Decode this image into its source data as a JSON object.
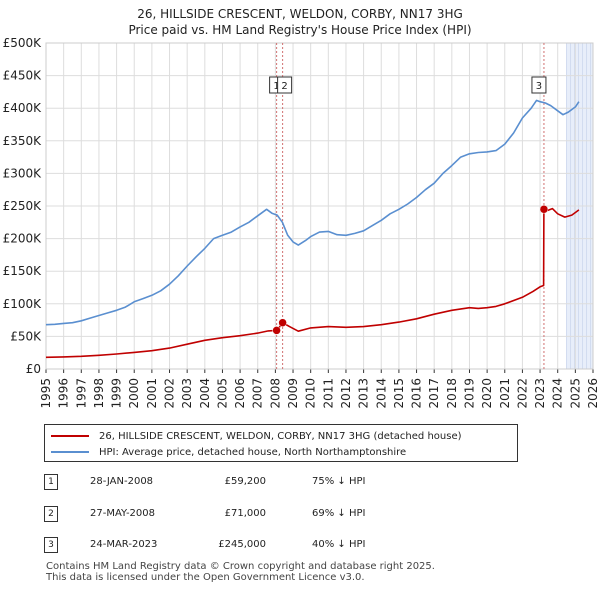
{
  "header": {
    "title": "26, HILLSIDE CRESCENT, WELDON, CORBY, NN17 3HG",
    "subtitle": "Price paid vs. HM Land Registry's House Price Index (HPI)"
  },
  "chart_data": {
    "type": "line",
    "title": "26, HILLSIDE CRESCENT, WELDON, CORBY, NN17 3HG",
    "subtitle": "Price paid vs. HM Land Registry's House Price Index (HPI)",
    "xlabel": "",
    "ylabel": "",
    "xlim": [
      1995,
      2026
    ],
    "ylim": [
      0,
      500000
    ],
    "x_ticks": [
      "1995",
      "1996",
      "1997",
      "1998",
      "1999",
      "2000",
      "2001",
      "2002",
      "2003",
      "2004",
      "2005",
      "2006",
      "2007",
      "2008",
      "2009",
      "2010",
      "2011",
      "2012",
      "2013",
      "2014",
      "2015",
      "2016",
      "2017",
      "2018",
      "2019",
      "2020",
      "2021",
      "2022",
      "2023",
      "2024",
      "2025",
      "2026"
    ],
    "y_ticks": [
      {
        "value": 0,
        "label": "£0"
      },
      {
        "value": 50000,
        "label": "£50K"
      },
      {
        "value": 100000,
        "label": "£100K"
      },
      {
        "value": 150000,
        "label": "£150K"
      },
      {
        "value": 200000,
        "label": "£200K"
      },
      {
        "value": 250000,
        "label": "£250K"
      },
      {
        "value": 300000,
        "label": "£300K"
      },
      {
        "value": 350000,
        "label": "£350K"
      },
      {
        "value": 400000,
        "label": "£400K"
      },
      {
        "value": 450000,
        "label": "£450K"
      },
      {
        "value": 500000,
        "label": "£500K"
      }
    ],
    "grid": true,
    "legend_position": "below",
    "series": [
      {
        "name": "26, HILLSIDE CRESCENT, WELDON, CORBY, NN17 3HG (detached house)",
        "color": "#c00000",
        "points": [
          [
            1995.0,
            18000
          ],
          [
            1996.0,
            18500
          ],
          [
            1997.0,
            19500
          ],
          [
            1998.0,
            21000
          ],
          [
            1999.0,
            23000
          ],
          [
            2000.0,
            25500
          ],
          [
            2001.0,
            28000
          ],
          [
            2002.0,
            32000
          ],
          [
            2003.0,
            38000
          ],
          [
            2004.0,
            44000
          ],
          [
            2005.0,
            48000
          ],
          [
            2006.0,
            51000
          ],
          [
            2007.0,
            55000
          ],
          [
            2007.6,
            58500
          ],
          [
            2008.07,
            59200
          ],
          [
            2008.2,
            63000
          ],
          [
            2008.41,
            71000
          ],
          [
            2008.8,
            65000
          ],
          [
            2009.3,
            58000
          ],
          [
            2010.0,
            63000
          ],
          [
            2011.0,
            65000
          ],
          [
            2012.0,
            64000
          ],
          [
            2013.0,
            65000
          ],
          [
            2014.0,
            68000
          ],
          [
            2015.0,
            72000
          ],
          [
            2016.0,
            77000
          ],
          [
            2017.0,
            84000
          ],
          [
            2018.0,
            90000
          ],
          [
            2019.0,
            94000
          ],
          [
            2019.5,
            93000
          ],
          [
            2020.0,
            94000
          ],
          [
            2020.5,
            96000
          ],
          [
            2021.0,
            100000
          ],
          [
            2022.0,
            110000
          ],
          [
            2022.6,
            119000
          ],
          [
            2023.0,
            126000
          ],
          [
            2023.2,
            128000
          ],
          [
            2023.22,
            245000
          ],
          [
            2023.4,
            243000
          ],
          [
            2023.7,
            246000
          ],
          [
            2024.0,
            238000
          ],
          [
            2024.4,
            233000
          ],
          [
            2024.8,
            236000
          ],
          [
            2025.0,
            240000
          ],
          [
            2025.2,
            244000
          ]
        ]
      },
      {
        "name": "HPI: Average price, detached house, North Northamptonshire",
        "color": "#5a8fd0",
        "points": [
          [
            1995.0,
            68000
          ],
          [
            1995.5,
            68500
          ],
          [
            1996.0,
            70000
          ],
          [
            1996.5,
            71000
          ],
          [
            1997.0,
            74000
          ],
          [
            1997.5,
            78000
          ],
          [
            1998.0,
            82000
          ],
          [
            1998.5,
            86000
          ],
          [
            1999.0,
            90000
          ],
          [
            1999.5,
            95000
          ],
          [
            2000.0,
            103000
          ],
          [
            2000.5,
            108000
          ],
          [
            2001.0,
            113000
          ],
          [
            2001.5,
            120000
          ],
          [
            2002.0,
            130000
          ],
          [
            2002.5,
            143000
          ],
          [
            2003.0,
            158000
          ],
          [
            2003.5,
            172000
          ],
          [
            2004.0,
            185000
          ],
          [
            2004.5,
            200000
          ],
          [
            2005.0,
            205000
          ],
          [
            2005.5,
            210000
          ],
          [
            2006.0,
            218000
          ],
          [
            2006.5,
            225000
          ],
          [
            2007.0,
            235000
          ],
          [
            2007.5,
            245000
          ],
          [
            2007.8,
            239000
          ],
          [
            2008.1,
            236000
          ],
          [
            2008.4,
            225000
          ],
          [
            2008.7,
            205000
          ],
          [
            2009.0,
            195000
          ],
          [
            2009.3,
            190000
          ],
          [
            2009.7,
            197000
          ],
          [
            2010.0,
            203000
          ],
          [
            2010.5,
            210000
          ],
          [
            2011.0,
            211000
          ],
          [
            2011.5,
            206000
          ],
          [
            2012.0,
            205000
          ],
          [
            2012.5,
            208000
          ],
          [
            2013.0,
            212000
          ],
          [
            2013.5,
            220000
          ],
          [
            2014.0,
            228000
          ],
          [
            2014.5,
            238000
          ],
          [
            2015.0,
            245000
          ],
          [
            2015.5,
            253000
          ],
          [
            2016.0,
            263000
          ],
          [
            2016.5,
            275000
          ],
          [
            2017.0,
            285000
          ],
          [
            2017.5,
            300000
          ],
          [
            2018.0,
            312000
          ],
          [
            2018.5,
            325000
          ],
          [
            2019.0,
            330000
          ],
          [
            2019.5,
            332000
          ],
          [
            2020.0,
            333000
          ],
          [
            2020.5,
            335000
          ],
          [
            2021.0,
            345000
          ],
          [
            2021.5,
            362000
          ],
          [
            2022.0,
            385000
          ],
          [
            2022.5,
            400000
          ],
          [
            2022.8,
            412000
          ],
          [
            2023.0,
            410000
          ],
          [
            2023.3,
            408000
          ],
          [
            2023.6,
            404000
          ],
          [
            2024.0,
            396000
          ],
          [
            2024.3,
            390000
          ],
          [
            2024.6,
            394000
          ],
          [
            2025.0,
            402000
          ],
          [
            2025.2,
            410000
          ]
        ]
      }
    ],
    "transactions": [
      {
        "label": "1",
        "x": 2008.07,
        "value": 59200
      },
      {
        "label": "2",
        "x": 2008.41,
        "value": 71000
      },
      {
        "label": "3",
        "x": 2023.22,
        "value": 245000
      }
    ],
    "marker_boxes": [
      "1",
      "2",
      "3"
    ],
    "future_shade_from": 2024.5,
    "future_shade_to": 2026
  },
  "legend": {
    "property_label": "26, HILLSIDE CRESCENT, WELDON, CORBY, NN17 3HG (detached house)",
    "hpi_label": "HPI: Average price, detached house, North Northamptonshire",
    "property_color": "#c00000",
    "hpi_color": "#5a8fd0"
  },
  "table": {
    "rows": [
      {
        "num": "1",
        "date": "28-JAN-2008",
        "price": "£59,200",
        "hpi": "75% ↓ HPI"
      },
      {
        "num": "2",
        "date": "27-MAY-2008",
        "price": "£71,000",
        "hpi": "69% ↓ HPI"
      },
      {
        "num": "3",
        "date": "24-MAR-2023",
        "price": "£245,000",
        "hpi": "40% ↓ HPI"
      }
    ]
  },
  "footer": {
    "line1": "Contains HM Land Registry data © Crown copyright and database right 2025.",
    "line2": "This data is licensed under the Open Government Licence v3.0."
  }
}
